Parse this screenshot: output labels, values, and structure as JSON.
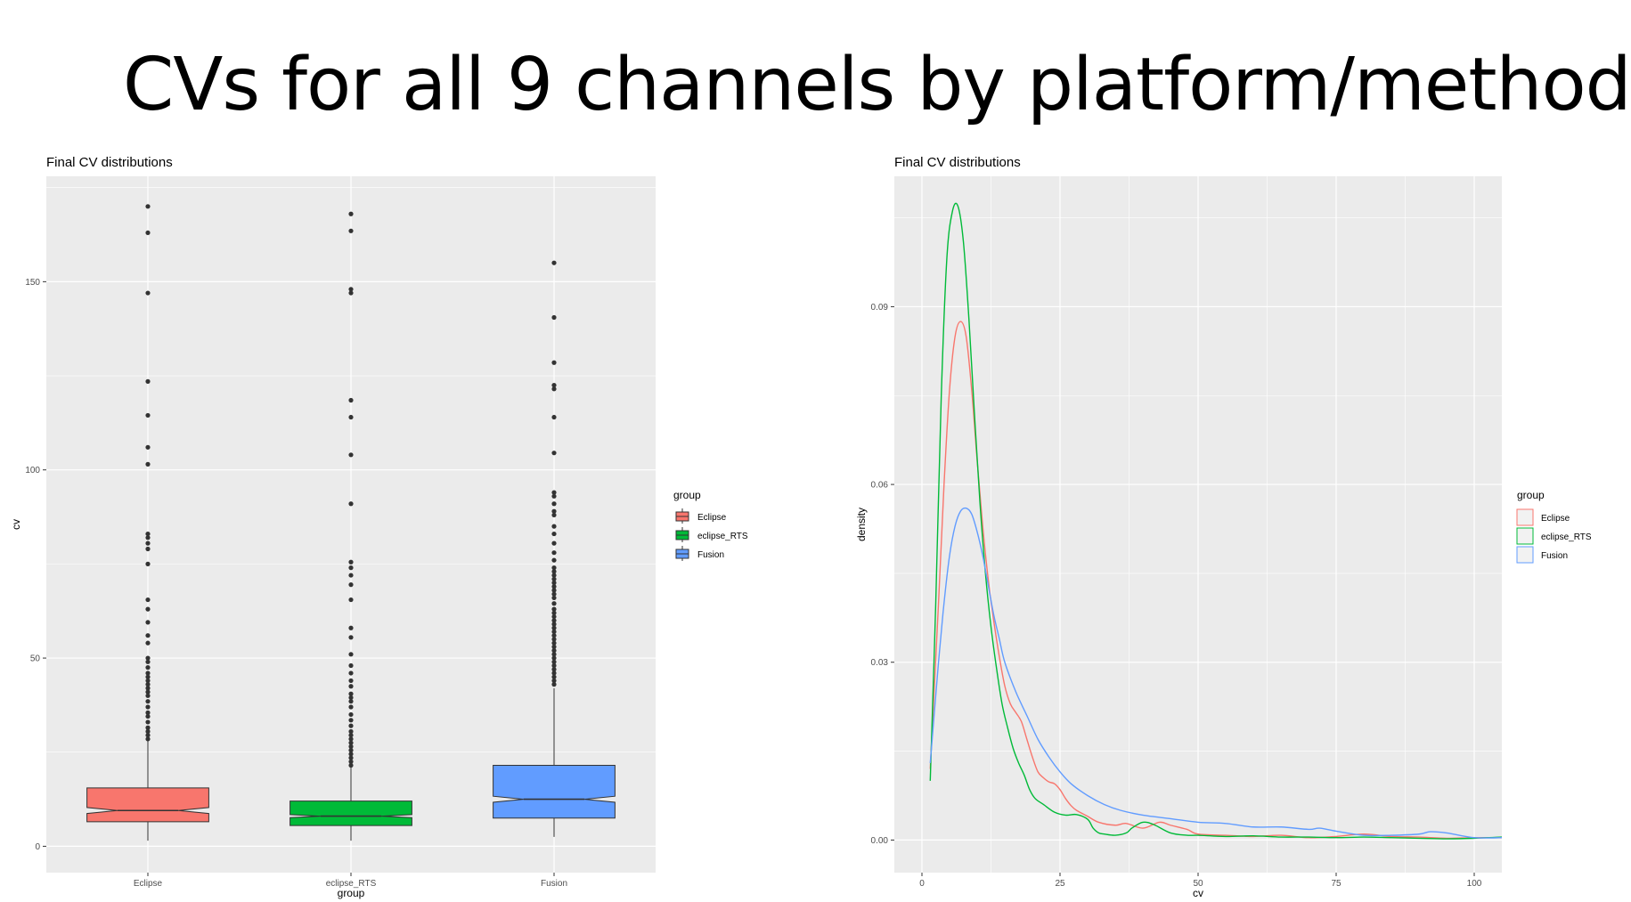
{
  "slide": {
    "title": "CVs for all 9 channels by platform/method"
  },
  "colors": {
    "Eclipse": "#F8766D",
    "eclipse_RTS": "#00BA38",
    "Fusion": "#619CFF",
    "panel_bg": "#EBEBEB",
    "grid": "#FFFFFF"
  },
  "chart_data": [
    {
      "type": "boxplot",
      "title": "Final CV distributions",
      "xlabel": "group",
      "ylabel": "cv",
      "ylim": [
        -7,
        178
      ],
      "yticks": [
        0,
        50,
        100,
        150
      ],
      "legend": {
        "title": "group",
        "position": "right",
        "entries": [
          "Eclipse",
          "eclipse_RTS",
          "Fusion"
        ]
      },
      "categories": [
        "Eclipse",
        "eclipse_RTS",
        "Fusion"
      ],
      "boxes": [
        {
          "name": "Eclipse",
          "min": 1.5,
          "q1": 6.5,
          "median": 9.5,
          "q3": 15.5,
          "max": 28,
          "notch": [
            8.7,
            10.3
          ],
          "outliers": [
            170,
            163,
            147,
            123.5,
            114.5,
            106,
            101.5,
            83,
            82,
            80.5,
            79,
            75,
            65.5,
            63,
            59.5,
            56,
            54,
            50,
            49,
            47.5,
            46,
            45,
            44,
            43,
            42,
            41,
            40,
            38.5,
            37,
            35.5,
            34.5,
            33,
            31.5,
            30.5,
            29.5,
            28.5
          ]
        },
        {
          "name": "eclipse_RTS",
          "min": 1.5,
          "q1": 5.5,
          "median": 8,
          "q3": 12,
          "max": 21,
          "notch": [
            7.6,
            8.4
          ],
          "outliers": [
            168,
            163.5,
            148,
            147,
            118.5,
            114,
            104,
            91,
            75.5,
            74,
            72,
            69.5,
            65.5,
            58,
            55.5,
            51,
            48,
            46,
            44,
            42.5,
            40.5,
            39.5,
            38.5,
            37,
            35,
            33.5,
            32,
            30.5,
            29.5,
            28.5,
            27.5,
            26.5,
            25.5,
            24.5,
            23.5,
            22.5,
            21.5
          ]
        },
        {
          "name": "Fusion",
          "min": 2.5,
          "q1": 7.5,
          "median": 12.5,
          "q3": 21.5,
          "max": 42,
          "notch": [
            11.7,
            13.3
          ],
          "outliers": [
            155,
            140.5,
            128.5,
            122.5,
            121.5,
            114,
            104.5,
            94,
            93,
            91,
            89,
            88,
            85,
            83,
            80.5,
            78,
            76,
            74,
            73,
            72,
            71,
            70,
            69,
            68,
            67,
            66,
            64.5,
            63,
            62,
            61,
            60,
            59,
            58,
            57,
            56,
            55,
            54,
            53,
            52,
            51,
            50,
            49,
            48,
            47,
            46,
            45,
            44,
            43
          ]
        }
      ]
    },
    {
      "type": "line",
      "subtype": "density",
      "title": "Final CV distributions",
      "xlabel": "cv",
      "ylabel": "density",
      "xlim": [
        -5,
        105
      ],
      "ylim": [
        -0.0055,
        0.112
      ],
      "xticks": [
        0,
        25,
        50,
        75,
        100
      ],
      "yticks": [
        0.0,
        0.03,
        0.06,
        0.09
      ],
      "ytick_labels": [
        "0.00",
        "0.03",
        "0.06",
        "0.09"
      ],
      "legend": {
        "title": "group",
        "position": "right",
        "entries": [
          "Eclipse",
          "eclipse_RTS",
          "Fusion"
        ]
      },
      "series": [
        {
          "name": "Eclipse",
          "x": [
            1.5,
            3,
            4,
            5,
            6,
            7,
            8,
            9,
            10,
            11,
            12,
            13,
            14,
            15,
            16,
            17,
            18,
            19,
            20,
            21,
            22,
            23,
            24,
            25,
            26,
            27,
            28,
            30,
            32,
            35,
            37,
            40,
            43,
            45,
            48,
            50,
            55,
            60,
            65,
            70,
            75,
            80,
            85,
            90,
            95,
            100,
            105
          ],
          "y": [
            0.012,
            0.04,
            0.06,
            0.076,
            0.085,
            0.0875,
            0.085,
            0.076,
            0.064,
            0.053,
            0.044,
            0.037,
            0.031,
            0.026,
            0.023,
            0.0215,
            0.02,
            0.017,
            0.014,
            0.0115,
            0.0105,
            0.0098,
            0.0095,
            0.0085,
            0.007,
            0.0058,
            0.005,
            0.004,
            0.003,
            0.0025,
            0.0028,
            0.002,
            0.003,
            0.0025,
            0.0018,
            0.001,
            0.0008,
            0.0006,
            0.0008,
            0.0004,
            0.0006,
            0.001,
            0.0006,
            0.0005,
            0.0003,
            0.0004,
            0.0004
          ]
        },
        {
          "name": "eclipse_RTS",
          "x": [
            1.5,
            2.5,
            3.5,
            4.5,
            5.5,
            6.5,
            7.5,
            8.5,
            9.5,
            10.5,
            11.5,
            12.5,
            13.5,
            14.5,
            15.5,
            16.5,
            17.5,
            18.5,
            19.5,
            20.5,
            22,
            24,
            26,
            28,
            30,
            31,
            32,
            33,
            35,
            37,
            38,
            40,
            42,
            45,
            48,
            50,
            55,
            60,
            65,
            70,
            75,
            80,
            85,
            90,
            95,
            100,
            105
          ],
          "y": [
            0.01,
            0.04,
            0.075,
            0.098,
            0.106,
            0.107,
            0.101,
            0.088,
            0.072,
            0.057,
            0.045,
            0.036,
            0.029,
            0.023,
            0.019,
            0.0155,
            0.013,
            0.011,
            0.0085,
            0.007,
            0.006,
            0.0047,
            0.0042,
            0.0043,
            0.0035,
            0.002,
            0.0012,
            0.001,
            0.0008,
            0.0012,
            0.002,
            0.003,
            0.0026,
            0.0012,
            0.0008,
            0.0008,
            0.0006,
            0.0007,
            0.0005,
            0.0005,
            0.0004,
            0.0005,
            0.0004,
            0.0003,
            0.0002,
            0.0003,
            0.0005
          ]
        },
        {
          "name": "Fusion",
          "x": [
            1.5,
            3,
            4,
            5,
            6,
            7,
            8,
            9,
            10,
            11,
            12,
            13,
            14,
            15,
            17,
            19,
            21,
            23,
            25,
            27,
            30,
            33,
            36,
            40,
            45,
            50,
            55,
            60,
            65,
            70,
            72,
            75,
            80,
            85,
            90,
            92,
            95,
            100,
            105
          ],
          "y": [
            0.013,
            0.03,
            0.04,
            0.048,
            0.053,
            0.0555,
            0.056,
            0.055,
            0.052,
            0.048,
            0.043,
            0.038,
            0.034,
            0.03,
            0.025,
            0.021,
            0.017,
            0.014,
            0.0115,
            0.0095,
            0.0075,
            0.006,
            0.005,
            0.0042,
            0.0036,
            0.003,
            0.0028,
            0.0022,
            0.0022,
            0.0018,
            0.002,
            0.0015,
            0.0008,
            0.0008,
            0.001,
            0.0014,
            0.0012,
            0.0004,
            0.0004
          ]
        }
      ]
    }
  ]
}
